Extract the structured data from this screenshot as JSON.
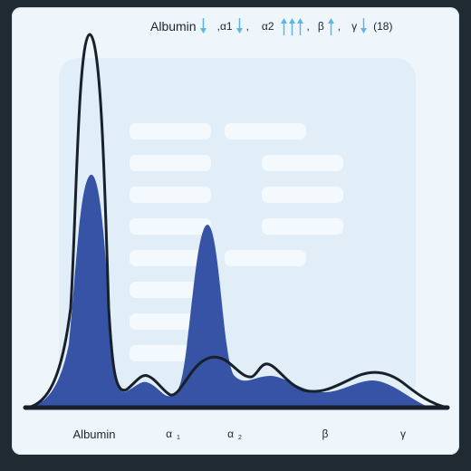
{
  "header": {
    "albumin": "Albumin",
    "alpha1": "α1",
    "alpha2": "α2",
    "beta": "β",
    "gamma": "γ",
    "count": "(18)",
    "sep": ","
  },
  "indicators": {
    "albumin": "down",
    "alpha1": "down",
    "alpha2": "up-up-up",
    "beta": "up",
    "gamma": "down"
  },
  "x_labels": {
    "albumin": "Albumin",
    "alpha1": "α",
    "alpha1_sub": "1",
    "alpha2": "α",
    "alpha2_sub": "2",
    "beta": "β",
    "gamma": "γ"
  },
  "colors": {
    "fill": "#3653a6",
    "outline": "#17202b",
    "arrow": "#5fb6e6",
    "background": "#eef6fb"
  }
}
